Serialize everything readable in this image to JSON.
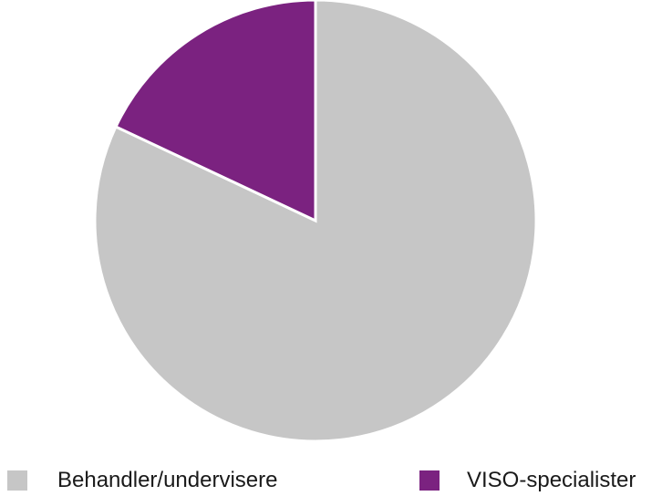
{
  "chart_data": {
    "type": "pie",
    "categories": [
      "Behandler/undervisere",
      "VISO-specialister"
    ],
    "values": [
      82,
      18
    ],
    "colors": [
      "#c6c6c6",
      "#7b2280"
    ],
    "start_angle_deg": 0,
    "direction": "clockwise",
    "slice_border_color": "#ffffff",
    "legend_position": "bottom",
    "title": ""
  }
}
